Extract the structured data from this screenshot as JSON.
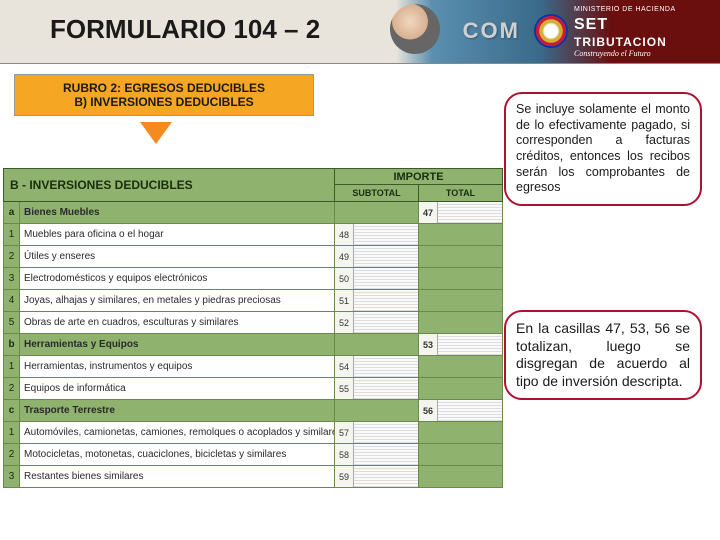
{
  "header": {
    "title": "FORMULARIO 104 – 2",
    "com_text": "COM",
    "ministry_line": "MINISTERIO DE HACIENDA",
    "set": "SET",
    "tributacion": "TRIBUTACION",
    "slogan": "Construyendo el Futuro"
  },
  "rubro": {
    "line1": "RUBRO 2: EGRESOS DEDUCIBLES",
    "line2": "B) INVERSIONES DEDUCIBLES"
  },
  "callout1": "Se incluye solamente el monto de lo efectivamente pagado, si corresponden a facturas créditos, entonces los recibos serán los comprobantes de egresos",
  "callout2": "En la casillas 47, 53, 56 se totalizan, luego se disgregan de acuerdo al tipo de inversión descripta.",
  "form": {
    "section_label": "B - INVERSIONES DEDUCIBLES",
    "importe": "IMPORTE",
    "subtotal": "SUBTOTAL",
    "total": "TOTAL",
    "rows": [
      {
        "idx": "a",
        "label": "Bienes Muebles",
        "cat": true,
        "sub": "",
        "tot": "47"
      },
      {
        "idx": "1",
        "label": "Muebles para oficina o el hogar",
        "sub": "48",
        "tot": ""
      },
      {
        "idx": "2",
        "label": "Útiles y enseres",
        "sub": "49",
        "tot": ""
      },
      {
        "idx": "3",
        "label": "Electrodomésticos y equipos electrónicos",
        "sub": "50",
        "tot": ""
      },
      {
        "idx": "4",
        "label": "Joyas, alhajas y similares, en metales y piedras preciosas",
        "sub": "51",
        "tot": ""
      },
      {
        "idx": "5",
        "label": "Obras de arte en cuadros, esculturas y similares",
        "sub": "52",
        "tot": ""
      },
      {
        "idx": "b",
        "label": "Herramientas y Equipos",
        "cat": true,
        "sub": "",
        "tot": "53"
      },
      {
        "idx": "1",
        "label": "Herramientas, instrumentos y equipos",
        "sub": "54",
        "tot": ""
      },
      {
        "idx": "2",
        "label": "Equipos de informática",
        "sub": "55",
        "tot": ""
      },
      {
        "idx": "c",
        "label": "Trasporte Terrestre",
        "cat": true,
        "sub": "",
        "tot": "56"
      },
      {
        "idx": "1",
        "label": "Automóviles, camionetas, camiones, remolques o acoplados y similares",
        "sub": "57",
        "tot": ""
      },
      {
        "idx": "2",
        "label": "Motocicletas, motonetas, cuaciclones, bicicletas y similares",
        "sub": "58",
        "tot": ""
      },
      {
        "idx": "3",
        "label": "Restantes bienes similares",
        "sub": "59",
        "tot": ""
      }
    ]
  }
}
